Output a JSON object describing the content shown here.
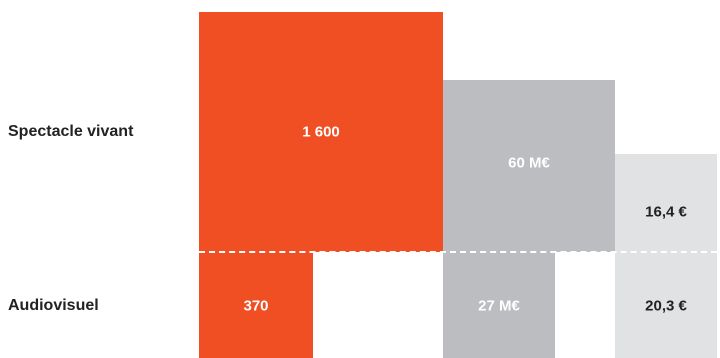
{
  "chart_data": {
    "type": "area",
    "rows": [
      "Spectacle vivant",
      "Audiovisuel"
    ],
    "columns": [
      {
        "color": "#f04e23",
        "text_color": "#ffffff",
        "values": [
          1600,
          370
        ],
        "labels": [
          "1 600",
          "370"
        ]
      },
      {
        "color": "#bcbdc0",
        "text_color": "#ffffff",
        "values": [
          60,
          27
        ],
        "labels": [
          "60 M€",
          "27 M€"
        ]
      },
      {
        "color": "#e1e2e3",
        "text_color": "#222222",
        "values": [
          16.4,
          20.3
        ],
        "labels": [
          "16,4 €",
          "20,3 €"
        ]
      }
    ]
  }
}
